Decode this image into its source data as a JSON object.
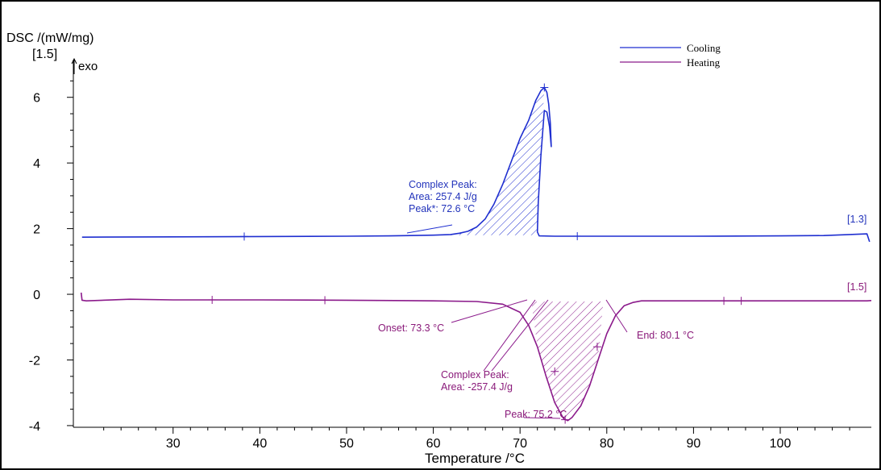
{
  "chart_data": {
    "type": "line",
    "title": "",
    "ylabel": "DSC /(mW/mg)",
    "xlabel": "Temperature /°C",
    "scale_marker": "[1.5]",
    "exo_label": "exo",
    "xlim": [
      18.5,
      110.5
    ],
    "ylim": [
      -4.1,
      7.0
    ],
    "x_ticks": [
      30,
      40,
      50,
      60,
      70,
      80,
      90,
      100
    ],
    "x_tick_labels": [
      "30",
      "40",
      "50",
      "60",
      "70",
      "80",
      "90",
      "100"
    ],
    "y_ticks": [
      -4,
      -2,
      0,
      2,
      4,
      6
    ],
    "y_tick_labels": [
      "-4",
      "-2",
      "0",
      "2",
      "4",
      "6"
    ],
    "grid": false,
    "legend_position": "top-right",
    "colors": {
      "cooling": "#1f2fd0",
      "heating": "#8b1a8b",
      "frame": "#000000"
    },
    "series": [
      {
        "name": "Cooling",
        "end_label": "[1.3]",
        "x": [
          19.5,
          30,
          40,
          50,
          55,
          60,
          62,
          63,
          64,
          65,
          66,
          67,
          68,
          69,
          70,
          71,
          71.8,
          72.4,
          72.8,
          73.1,
          73.3,
          73.5,
          73.6,
          73.4,
          73.1,
          72.8,
          72.4,
          72.1,
          72.0,
          72.2,
          74,
          80,
          90,
          100,
          105,
          108,
          110,
          110.3
        ],
        "y": [
          1.74,
          1.75,
          1.76,
          1.77,
          1.78,
          1.8,
          1.82,
          1.86,
          1.92,
          2.05,
          2.3,
          2.75,
          3.35,
          4.05,
          4.75,
          5.3,
          5.9,
          6.2,
          6.3,
          6.15,
          5.8,
          5.2,
          4.5,
          5.1,
          5.55,
          5.6,
          4.2,
          2.8,
          1.9,
          1.78,
          1.77,
          1.77,
          1.77,
          1.78,
          1.79,
          1.82,
          1.84,
          1.6
        ]
      },
      {
        "name": "Heating",
        "end_label": "[1.5]",
        "x": [
          19.4,
          19.5,
          20,
          25,
          30,
          40,
          50,
          60,
          65,
          68,
          70,
          71,
          72,
          73,
          74,
          75,
          75.5,
          76,
          77,
          78,
          79,
          80,
          81,
          82,
          83,
          84,
          86,
          90,
          95,
          100,
          105,
          110,
          110.5
        ],
        "y": [
          0.05,
          -0.18,
          -0.2,
          -0.15,
          -0.17,
          -0.17,
          -0.18,
          -0.2,
          -0.22,
          -0.3,
          -0.55,
          -0.95,
          -1.6,
          -2.5,
          -3.3,
          -3.78,
          -3.85,
          -3.75,
          -3.4,
          -2.8,
          -2.0,
          -1.2,
          -0.65,
          -0.35,
          -0.25,
          -0.2,
          -0.2,
          -0.2,
          -0.2,
          -0.2,
          -0.2,
          -0.2,
          -0.19
        ]
      }
    ],
    "annotations": {
      "cooling_peak": {
        "title": "Complex Peak:",
        "area": "Area:   257.4 J/g",
        "peak": "Peak*:   72.6 °C"
      },
      "heating_onset": "Onset: 73.3 °C",
      "heating_end": "End: 80.1 °C",
      "heating_peak": {
        "title": "Complex Peak:",
        "area": "Area:  -257.4 J/g"
      },
      "heating_peak_temp": "Peak: 75.2 °C"
    }
  }
}
